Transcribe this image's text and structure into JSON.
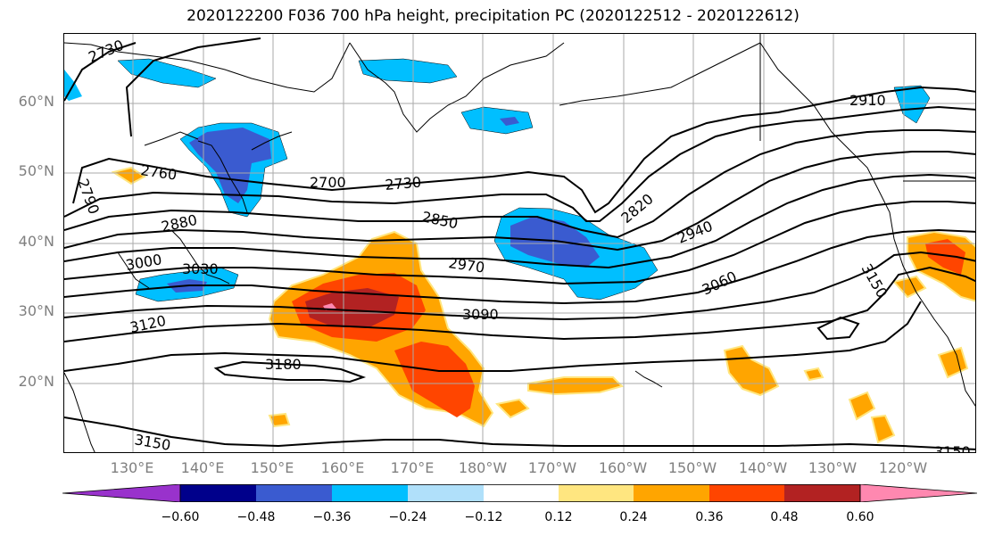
{
  "title": "2020122200 F036 700 hPa height, precipitation PC (2020122512 - 2020122612)",
  "lat_labels": [
    "60°N",
    "50°N",
    "40°N",
    "30°N",
    "20°N"
  ],
  "lon_labels": [
    "130°E",
    "140°E",
    "150°E",
    "160°E",
    "170°E",
    "180°W",
    "170°W",
    "160°W",
    "150°W",
    "140°W",
    "130°W",
    "120°W"
  ],
  "contour_labels": [
    "2730",
    "2760",
    "2790",
    "2700",
    "2730",
    "2910",
    "2880",
    "2850",
    "2820",
    "2940",
    "3000",
    "3030",
    "2970",
    "3060",
    "3150",
    "3120",
    "3090",
    "3180",
    "3150",
    "3150"
  ],
  "colorbar": {
    "ticks": [
      "−0.60",
      "−0.48",
      "−0.36",
      "−0.24",
      "−0.12",
      "0.12",
      "0.24",
      "0.36",
      "0.48",
      "0.60"
    ],
    "colors": [
      "#9932cc",
      "#00008b",
      "#3a5bd0",
      "#00bfff",
      "#b0e0fa",
      "#ffffff",
      "#ffe680",
      "#ffa500",
      "#ff4500",
      "#b22222",
      "#ff88b0"
    ]
  },
  "colors": {
    "shade_blue_light": "#00bfff",
    "shade_blue_mid": "#3a5bd0",
    "shade_orange": "#ffa500",
    "shade_red": "#ff4500",
    "shade_darkred": "#b22222",
    "shade_yellow": "#ffe680",
    "shade_pink": "#ff88b0"
  }
}
